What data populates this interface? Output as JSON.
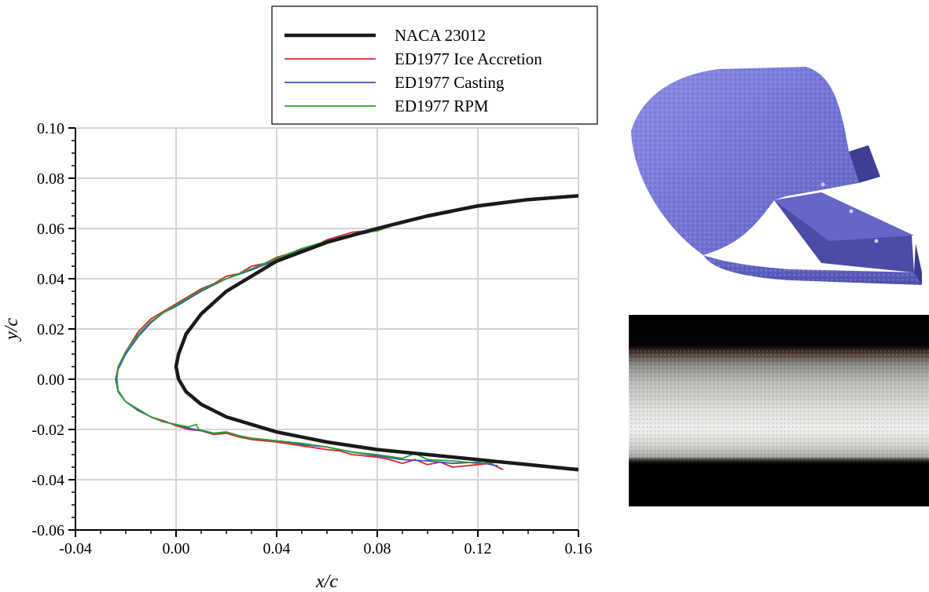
{
  "chart_data": {
    "type": "line",
    "xlabel": "x/c",
    "ylabel": "y/c",
    "xlim": [
      -0.04,
      0.16
    ],
    "ylim": [
      -0.06,
      0.1
    ],
    "x_ticks": [
      -0.04,
      0.0,
      0.04,
      0.08,
      0.12,
      0.16
    ],
    "x_tick_labels": [
      "-0.04",
      "0.00",
      "0.04",
      "0.08",
      "0.12",
      "0.16"
    ],
    "y_ticks": [
      -0.06,
      -0.04,
      -0.02,
      0.0,
      0.02,
      0.04,
      0.06,
      0.08,
      0.1
    ],
    "y_tick_labels": [
      "-0.06",
      "-0.04",
      "-0.02",
      "0.00",
      "0.02",
      "0.04",
      "0.06",
      "0.08",
      "0.10"
    ],
    "grid": true,
    "legend_position": "top",
    "series": [
      {
        "name": "NACA 23012",
        "color": "#1a1a1a",
        "points": [
          [
            0.16,
            0.073
          ],
          [
            0.14,
            0.0715
          ],
          [
            0.12,
            0.069
          ],
          [
            0.1,
            0.065
          ],
          [
            0.08,
            0.06
          ],
          [
            0.06,
            0.0545
          ],
          [
            0.04,
            0.047
          ],
          [
            0.02,
            0.035
          ],
          [
            0.01,
            0.026
          ],
          [
            0.004,
            0.018
          ],
          [
            0.001,
            0.01
          ],
          [
            0.0,
            0.005
          ],
          [
            0.001,
            0.0
          ],
          [
            0.004,
            -0.005
          ],
          [
            0.01,
            -0.01
          ],
          [
            0.02,
            -0.015
          ],
          [
            0.04,
            -0.021
          ],
          [
            0.06,
            -0.025
          ],
          [
            0.08,
            -0.028
          ],
          [
            0.1,
            -0.03
          ],
          [
            0.12,
            -0.032
          ],
          [
            0.14,
            -0.034
          ],
          [
            0.16,
            -0.036
          ]
        ]
      },
      {
        "name": "ED1977 Ice Accretion",
        "color": "#d62728",
        "points": [
          [
            0.08,
            0.06
          ],
          [
            0.075,
            0.059
          ],
          [
            0.07,
            0.0585
          ],
          [
            0.065,
            0.057
          ],
          [
            0.06,
            0.0555
          ],
          [
            0.055,
            0.053
          ],
          [
            0.05,
            0.052
          ],
          [
            0.045,
            0.05
          ],
          [
            0.04,
            0.0485
          ],
          [
            0.035,
            0.046
          ],
          [
            0.03,
            0.045
          ],
          [
            0.025,
            0.042
          ],
          [
            0.02,
            0.041
          ],
          [
            0.015,
            0.038
          ],
          [
            0.01,
            0.036
          ],
          [
            0.005,
            0.033
          ],
          [
            0.0,
            0.03
          ],
          [
            -0.005,
            0.027
          ],
          [
            -0.01,
            0.024
          ],
          [
            -0.015,
            0.019
          ],
          [
            -0.02,
            0.011
          ],
          [
            -0.023,
            0.005
          ],
          [
            -0.024,
            0.0
          ],
          [
            -0.023,
            -0.005
          ],
          [
            -0.02,
            -0.009
          ],
          [
            -0.015,
            -0.012
          ],
          [
            -0.01,
            -0.015
          ],
          [
            -0.005,
            -0.0165
          ],
          [
            0.0,
            -0.0185
          ],
          [
            0.005,
            -0.02
          ],
          [
            0.01,
            -0.0205
          ],
          [
            0.015,
            -0.022
          ],
          [
            0.02,
            -0.0215
          ],
          [
            0.025,
            -0.023
          ],
          [
            0.03,
            -0.024
          ],
          [
            0.04,
            -0.025
          ],
          [
            0.05,
            -0.0265
          ],
          [
            0.06,
            -0.028
          ],
          [
            0.065,
            -0.0285
          ],
          [
            0.07,
            -0.03
          ],
          [
            0.075,
            -0.0305
          ],
          [
            0.08,
            -0.031
          ],
          [
            0.085,
            -0.032
          ],
          [
            0.09,
            -0.0335
          ],
          [
            0.095,
            -0.032
          ],
          [
            0.1,
            -0.034
          ],
          [
            0.105,
            -0.033
          ],
          [
            0.11,
            -0.035
          ],
          [
            0.115,
            -0.0345
          ],
          [
            0.12,
            -0.034
          ],
          [
            0.125,
            -0.0335
          ],
          [
            0.13,
            -0.036
          ]
        ]
      },
      {
        "name": "ED1977 Casting",
        "color": "#3a55c2",
        "points": [
          [
            0.135,
            0.0705
          ],
          [
            0.12,
            0.0685
          ],
          [
            0.1,
            0.065
          ],
          [
            0.08,
            0.0595
          ],
          [
            0.075,
            0.058
          ],
          [
            0.07,
            0.0575
          ],
          [
            0.065,
            0.0565
          ],
          [
            0.06,
            0.0545
          ],
          [
            0.05,
            0.0515
          ],
          [
            0.04,
            0.0475
          ],
          [
            0.03,
            0.0435
          ],
          [
            0.02,
            0.04
          ],
          [
            0.01,
            0.035
          ],
          [
            0.005,
            0.032
          ],
          [
            0.0,
            0.029
          ],
          [
            -0.005,
            0.0265
          ],
          [
            -0.01,
            0.0225
          ],
          [
            -0.015,
            0.017
          ],
          [
            -0.02,
            0.01
          ],
          [
            -0.023,
            0.004
          ],
          [
            -0.024,
            0.0
          ],
          [
            -0.023,
            -0.005
          ],
          [
            -0.02,
            -0.009
          ],
          [
            -0.015,
            -0.0125
          ],
          [
            -0.01,
            -0.015
          ],
          [
            -0.005,
            -0.017
          ],
          [
            0.0,
            -0.018
          ],
          [
            0.005,
            -0.0195
          ],
          [
            0.01,
            -0.0205
          ],
          [
            0.015,
            -0.0215
          ],
          [
            0.02,
            -0.021
          ],
          [
            0.025,
            -0.0225
          ],
          [
            0.03,
            -0.0235
          ],
          [
            0.04,
            -0.0245
          ],
          [
            0.05,
            -0.026
          ],
          [
            0.06,
            -0.027
          ],
          [
            0.07,
            -0.029
          ],
          [
            0.08,
            -0.0305
          ],
          [
            0.09,
            -0.032
          ],
          [
            0.1,
            -0.0325
          ],
          [
            0.11,
            -0.0335
          ],
          [
            0.12,
            -0.033
          ],
          [
            0.128,
            -0.0345
          ]
        ]
      },
      {
        "name": "ED1977 RPM",
        "color": "#2ca02c",
        "points": [
          [
            0.11,
            0.0665
          ],
          [
            0.1,
            0.0645
          ],
          [
            0.09,
            0.0625
          ],
          [
            0.08,
            0.059
          ],
          [
            0.075,
            0.0585
          ],
          [
            0.07,
            0.0575
          ],
          [
            0.065,
            0.056
          ],
          [
            0.06,
            0.055
          ],
          [
            0.05,
            0.052
          ],
          [
            0.04,
            0.048
          ],
          [
            0.03,
            0.044
          ],
          [
            0.02,
            0.04
          ],
          [
            0.01,
            0.0355
          ],
          [
            0.005,
            0.0325
          ],
          [
            0.0,
            0.0295
          ],
          [
            -0.005,
            0.0265
          ],
          [
            -0.01,
            0.023
          ],
          [
            -0.015,
            0.018
          ],
          [
            -0.02,
            0.011
          ],
          [
            -0.023,
            0.005
          ],
          [
            -0.0235,
            0.0
          ],
          [
            -0.023,
            -0.0045
          ],
          [
            -0.02,
            -0.009
          ],
          [
            -0.015,
            -0.012
          ],
          [
            -0.01,
            -0.015
          ],
          [
            -0.005,
            -0.017
          ],
          [
            0.0,
            -0.018
          ],
          [
            0.005,
            -0.019
          ],
          [
            0.008,
            -0.018
          ],
          [
            0.009,
            -0.02
          ],
          [
            0.015,
            -0.0215
          ],
          [
            0.02,
            -0.021
          ],
          [
            0.025,
            -0.0225
          ],
          [
            0.03,
            -0.0235
          ],
          [
            0.04,
            -0.0245
          ],
          [
            0.05,
            -0.0255
          ],
          [
            0.06,
            -0.027
          ],
          [
            0.07,
            -0.029
          ],
          [
            0.08,
            -0.03
          ],
          [
            0.09,
            -0.0315
          ],
          [
            0.095,
            -0.0295
          ],
          [
            0.1,
            -0.032
          ],
          [
            0.11,
            -0.0325
          ],
          [
            0.12,
            -0.0335
          ],
          [
            0.13,
            -0.033
          ],
          [
            0.16,
            -0.0355
          ]
        ]
      }
    ]
  },
  "images": {
    "ice_model_3d": "rendered-3d-ice-accretion-model",
    "ice_photo": "ice-casting-photograph"
  }
}
